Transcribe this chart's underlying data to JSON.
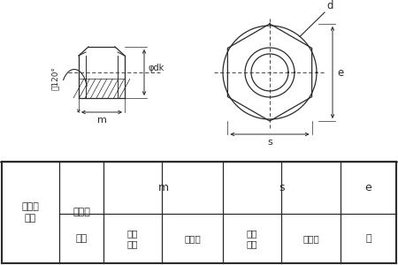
{
  "line_color": "#2a2a2a",
  "annotation_120": "約120°",
  "label_m": "m",
  "label_s": "s",
  "label_e": "e",
  "label_d": "d",
  "label_phidk": "φdk",
  "table_row_label": "ねじの\n呼び",
  "table_pitch": "ピッチ",
  "table_m": "m",
  "table_s": "s",
  "table_e": "e",
  "table_naname": "並目",
  "table_kijun_m": "基準\n尸法",
  "table_kyoyo_m": "許容差",
  "table_kijun_s": "基準\n尸法",
  "table_kyoyo_s": "許容差",
  "table_yaku": "約"
}
